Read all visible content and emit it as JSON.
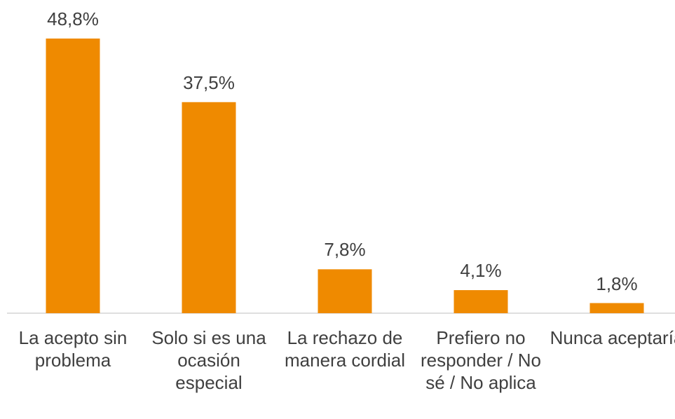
{
  "chart_data": {
    "type": "bar",
    "categories": [
      "La acepto sin problema",
      "Solo si es una ocasión especial",
      "La rechazo de manera cordial",
      "Prefiero no responder / No sé / No aplica",
      "Nunca aceptaría"
    ],
    "values": [
      48.8,
      37.5,
      7.8,
      4.1,
      1.8
    ],
    "value_labels": [
      "48,8%",
      "37,5%",
      "7,8%",
      "4,1%",
      "1,8%"
    ],
    "color": "#ef8a00"
  }
}
